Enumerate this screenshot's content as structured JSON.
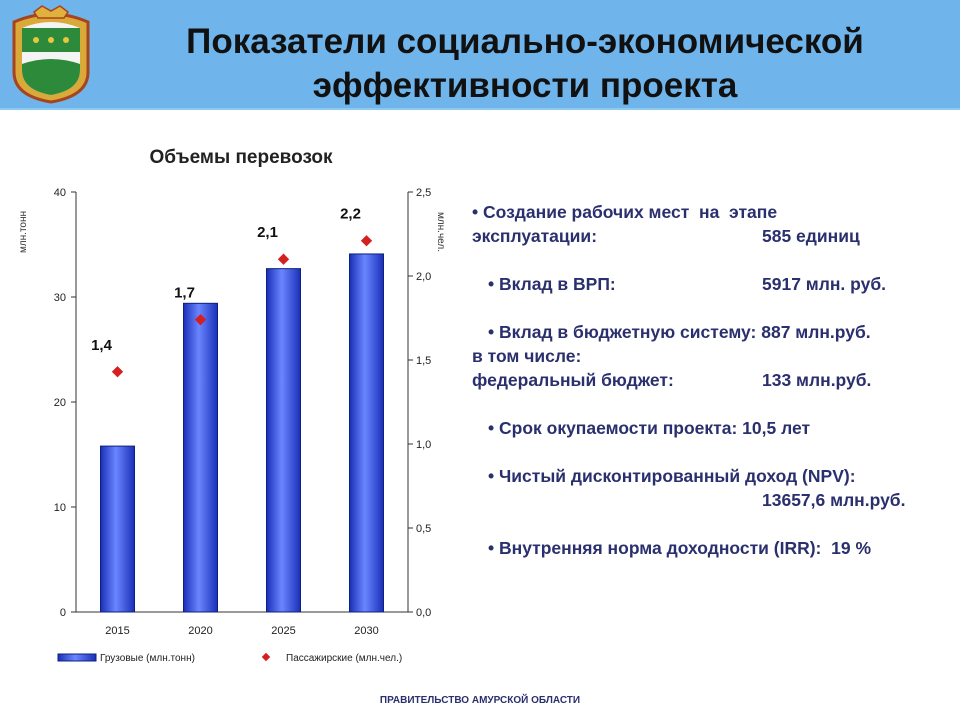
{
  "header": {
    "title_line1": "Показатели социально-экономической",
    "title_line2": "эффективности проекта",
    "header_color": "#6fb4ea"
  },
  "chart_data": {
    "type": "bar",
    "title": "Объемы перевозок",
    "categories": [
      "2015",
      "2020",
      "2025",
      "2030"
    ],
    "series": [
      {
        "name": "Грузовые (млн.тонн)",
        "axis": "left",
        "type": "bar",
        "values": [
          15.8,
          29.4,
          32.7,
          34.1
        ],
        "color": "#2f4fe0"
      },
      {
        "name": "Пассажирские (млн.чел.)",
        "axis": "right",
        "type": "scatter",
        "values": [
          1.43,
          1.74,
          2.1,
          2.21
        ],
        "labels": [
          "1,4",
          "1,7",
          "2,1",
          "2,2"
        ],
        "color": "#d42020"
      }
    ],
    "y_left": {
      "min": 0,
      "max": 40,
      "ticks": [
        "0",
        "10",
        "20",
        "30",
        "40"
      ],
      "label": "млн.тонн"
    },
    "y_right": {
      "min": 0,
      "max": 2.5,
      "ticks": [
        "0,0",
        "0,5",
        "1,0",
        "1,5",
        "2,0",
        "2,5"
      ],
      "label": "млн.чел."
    },
    "legend": "bottom",
    "grid": false
  },
  "bullets": [
    {
      "text": "• Создание рабочих мест  на  этапе",
      "indent": false
    },
    {
      "text": "эксплуатации:",
      "indent": false,
      "value": "585 единиц"
    },
    {
      "gap": true
    },
    {
      "text": "• Вклад в ВРП:",
      "indent": true,
      "value": "5917 млн. руб."
    },
    {
      "gap": true
    },
    {
      "text": "• Вклад в бюджетную систему: 887 млн.руб.",
      "indent": true
    },
    {
      "text": "в том числе:",
      "indent": false
    },
    {
      "text": "федеральный бюджет:",
      "indent": false,
      "value": "133 млн.руб."
    },
    {
      "gap": true
    },
    {
      "text": "• Срок окупаемости проекта: 10,5 лет",
      "indent": true
    },
    {
      "gap": true
    },
    {
      "text": "• Чистый дисконтированный доход (NPV):",
      "indent": true
    },
    {
      "text": "",
      "indent": false,
      "value": "13657,6 млн.руб."
    },
    {
      "gap": true
    },
    {
      "text": "• Внутренняя норма доходности (IRR):  19 %",
      "indent": true
    }
  ],
  "footer": {
    "text": "ПРАВИТЕЛЬСТВО АМУРСКОЙ ОБЛАСТИ"
  }
}
